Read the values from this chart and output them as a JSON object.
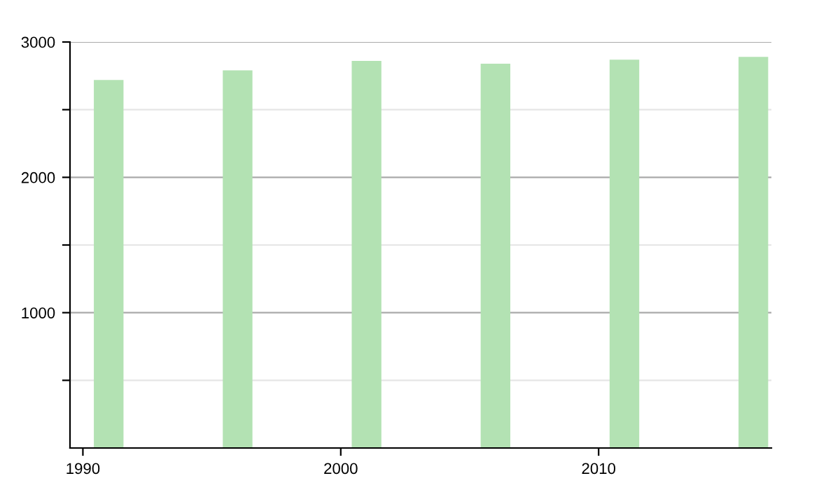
{
  "chart_data": {
    "type": "bar",
    "x": [
      1991,
      1996,
      2001,
      2006,
      2011,
      2016
    ],
    "values": [
      2720,
      2790,
      2860,
      2840,
      2870,
      2890
    ],
    "color": "#b3e2b3",
    "xlim": [
      1989.5,
      2016.7
    ],
    "xticks": [
      1990,
      2000,
      2010
    ],
    "ylim": [
      0,
      3000
    ],
    "yticks": [
      {
        "value": 500,
        "label": null
      },
      1000,
      {
        "value": 1500,
        "label": null
      },
      2000,
      {
        "value": 2500,
        "label": null
      },
      3000
    ],
    "grid": "y"
  }
}
